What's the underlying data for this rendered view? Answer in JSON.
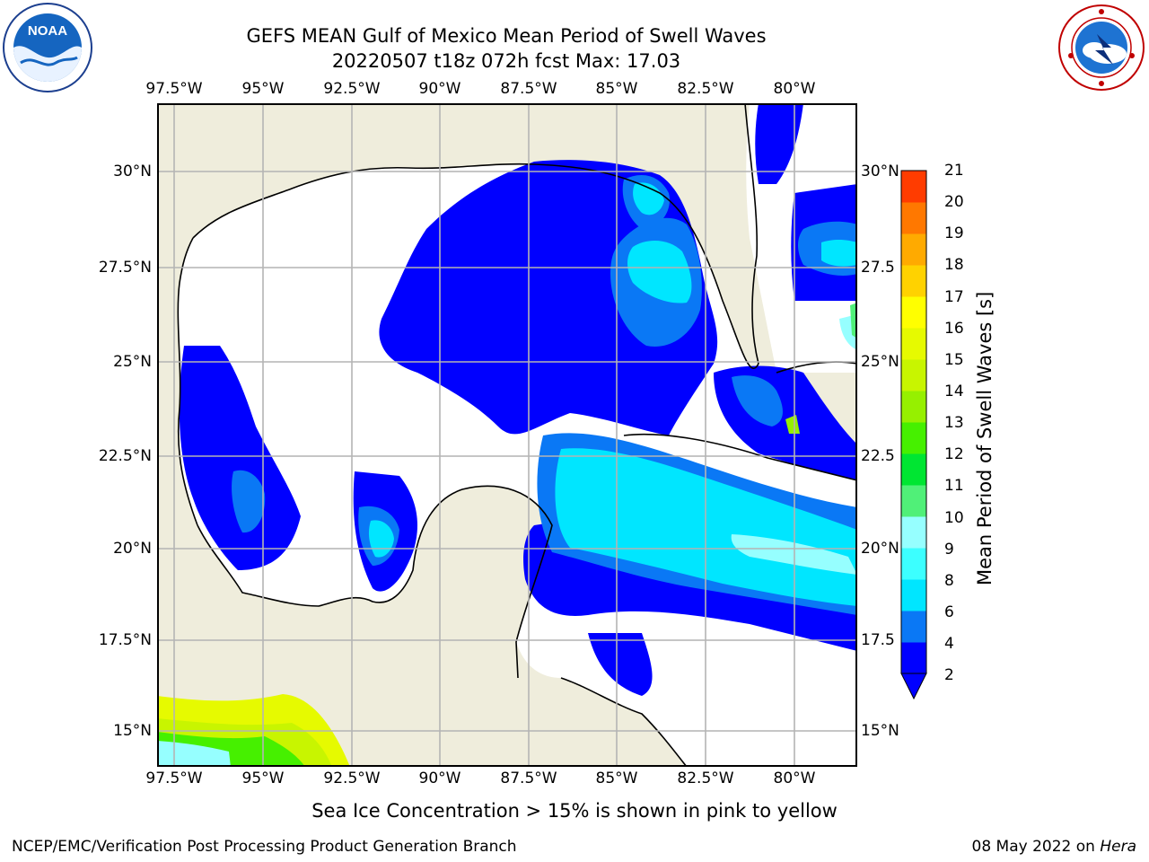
{
  "header": {
    "title_line1": "GEFS MEAN Gulf of Mexico Mean Period of Swell Waves",
    "title_line2": "20220507 t18z 072h fcst   Max: 17.03"
  },
  "logos": {
    "left": "noaa-logo",
    "right": "nws-logo"
  },
  "map": {
    "lon_ticks": [
      "97.5°W",
      "95°W",
      "92.5°W",
      "90°W",
      "87.5°W",
      "85°W",
      "82.5°W",
      "80°W"
    ],
    "lat_ticks": [
      "30°N",
      "27.5°N",
      "25°N",
      "22.5°N",
      "20°N",
      "17.5°N",
      "15°N"
    ],
    "lat_ticks_right": [
      "30°N",
      "27.5",
      "25°N",
      "22.5",
      "20°N",
      "17.5",
      "15°N"
    ],
    "colors": {
      "land": "#efeddc",
      "water": "#ffffff",
      "grid": "#b4b4b4",
      "coast": "#000000"
    }
  },
  "colorbar": {
    "label": "Mean Period of Swell Waves [s]",
    "ticks": [
      "2",
      "4",
      "6",
      "8",
      "9",
      "10",
      "11",
      "12",
      "13",
      "14",
      "15",
      "16",
      "17",
      "18",
      "19",
      "20",
      "21"
    ],
    "colors": [
      "#0000ff",
      "#0a78f5",
      "#00e6ff",
      "#3cffff",
      "#96ffff",
      "#50f078",
      "#00e632",
      "#46f000",
      "#96f000",
      "#c8f500",
      "#e6fa00",
      "#ffff00",
      "#ffd200",
      "#ffaa00",
      "#ff7800",
      "#ff3c00",
      "#ff0000"
    ],
    "extend": "min"
  },
  "note": "Sea Ice Concentration > 15% is shown in pink to yellow",
  "footer": {
    "left": "NCEP/EMC/Verification Post Processing Product Generation Branch",
    "date": "08 May 2022 on ",
    "machine": "Hera"
  }
}
